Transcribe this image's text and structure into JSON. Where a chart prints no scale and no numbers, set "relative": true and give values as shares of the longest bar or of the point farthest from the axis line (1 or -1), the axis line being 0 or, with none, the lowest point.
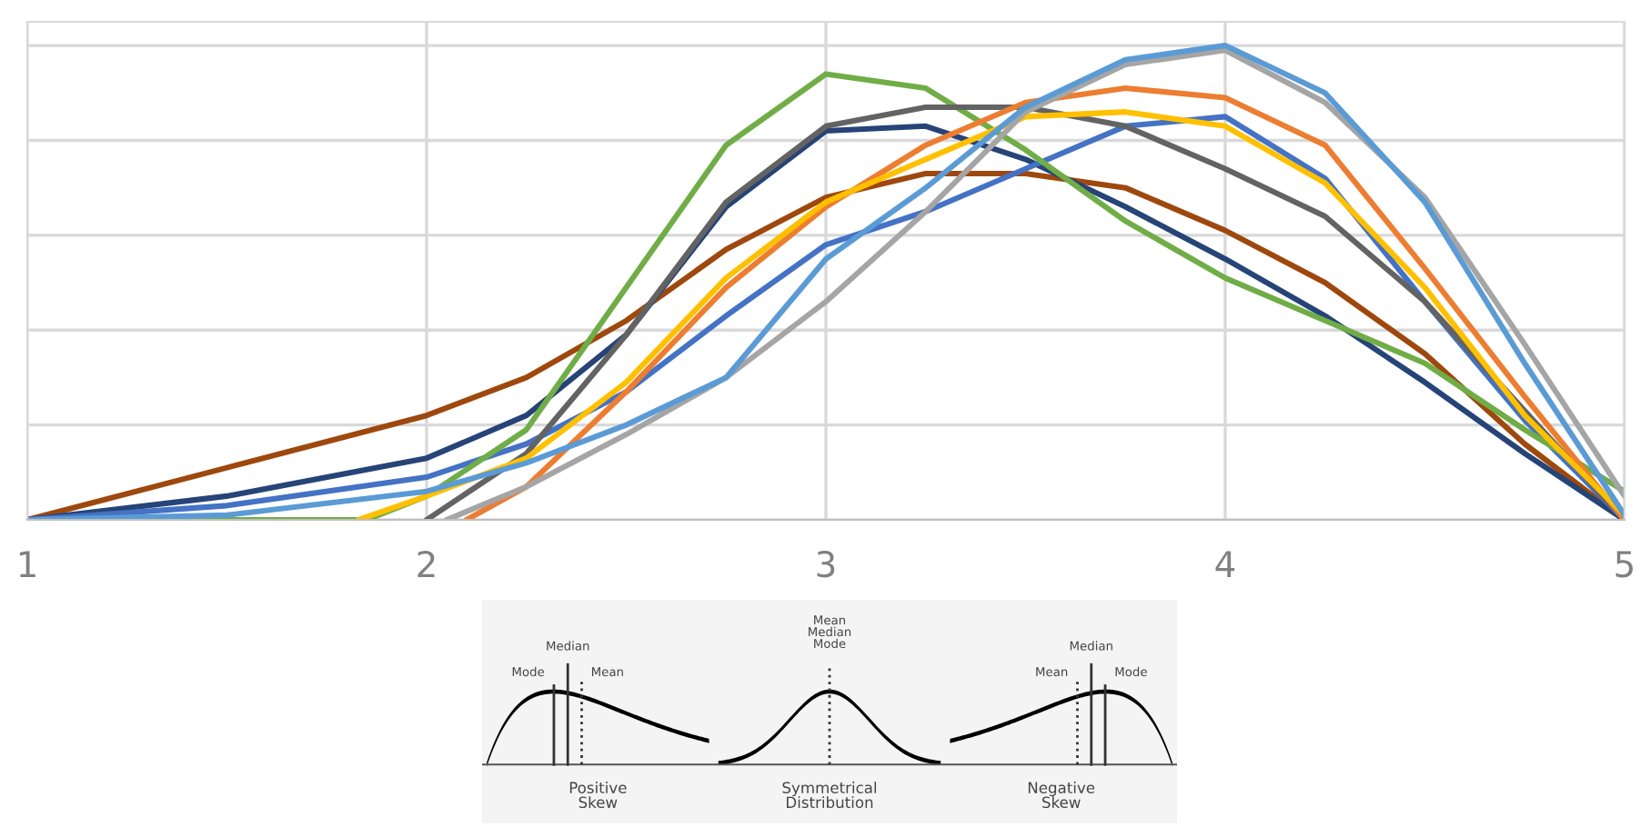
{
  "chart_data": {
    "type": "line",
    "relative": true,
    "grid": true,
    "xlim": [
      1,
      5
    ],
    "xticks": [
      1,
      2,
      3,
      4,
      5
    ],
    "series": [
      {
        "color": "#9e480e",
        "x": [
          1,
          1.5,
          2,
          2.25,
          2.5,
          2.75,
          3,
          3.25,
          3.5,
          3.75,
          4,
          4.25,
          4.5,
          4.75,
          5
        ],
        "values": [
          0,
          0.11,
          0.22,
          0.3,
          0.42,
          0.57,
          0.68,
          0.73,
          0.73,
          0.7,
          0.61,
          0.5,
          0.35,
          0.16,
          0
        ]
      },
      {
        "color": "#264478",
        "x": [
          1,
          1.5,
          2,
          2.25,
          2.5,
          2.75,
          3,
          3.25,
          3.5,
          3.75,
          4,
          4.25,
          4.5,
          4.75,
          5
        ],
        "values": [
          0,
          0.05,
          0.13,
          0.22,
          0.39,
          0.66,
          0.82,
          0.83,
          0.76,
          0.66,
          0.55,
          0.43,
          0.29,
          0.14,
          0
        ]
      },
      {
        "color": "#4472c4",
        "x": [
          1,
          1.5,
          2,
          2.25,
          2.5,
          2.75,
          3,
          3.25,
          3.5,
          3.75,
          4,
          4.25,
          4.5,
          4.75,
          5
        ],
        "values": [
          0,
          0.03,
          0.09,
          0.16,
          0.27,
          0.43,
          0.58,
          0.65,
          0.74,
          0.83,
          0.85,
          0.72,
          0.46,
          0.21,
          0
        ]
      },
      {
        "color": "#70ad47",
        "x": [
          1,
          1.5,
          1.85,
          2,
          2.25,
          2.5,
          2.75,
          3,
          3.25,
          3.5,
          3.75,
          4,
          4.25,
          4.5,
          4.75,
          5
        ],
        "values": [
          0,
          0,
          0,
          0.05,
          0.19,
          0.49,
          0.79,
          0.94,
          0.91,
          0.78,
          0.63,
          0.51,
          0.42,
          0.33,
          0.19,
          0.06
        ]
      },
      {
        "color": "#636363",
        "x": [
          2,
          2.25,
          2.5,
          2.75,
          3,
          3.25,
          3.5,
          3.75,
          4,
          4.25,
          4.5,
          4.75,
          5
        ],
        "values": [
          0,
          0.14,
          0.39,
          0.67,
          0.83,
          0.87,
          0.87,
          0.83,
          0.74,
          0.64,
          0.46,
          0.23,
          0
        ]
      },
      {
        "color": "#ed7d31",
        "x": [
          2.1,
          2.25,
          2.5,
          2.75,
          3,
          3.25,
          3.5,
          3.75,
          4,
          4.25,
          4.5,
          4.75,
          5
        ],
        "values": [
          0,
          0.07,
          0.27,
          0.49,
          0.66,
          0.79,
          0.88,
          0.91,
          0.89,
          0.79,
          0.53,
          0.26,
          0
        ]
      },
      {
        "color": "#ffc000",
        "x": [
          1.83,
          2,
          2.25,
          2.5,
          2.75,
          3,
          3.25,
          3.5,
          3.75,
          4,
          4.25,
          4.5,
          4.75,
          5
        ],
        "values": [
          0,
          0.05,
          0.13,
          0.29,
          0.51,
          0.67,
          0.76,
          0.85,
          0.86,
          0.83,
          0.71,
          0.49,
          0.22,
          0.01
        ]
      },
      {
        "color": "#a5a5a5",
        "x": [
          2.05,
          2.25,
          2.5,
          2.75,
          3,
          3.25,
          3.5,
          3.75,
          4,
          4.25,
          4.5,
          4.75,
          5
        ],
        "values": [
          0,
          0.07,
          0.18,
          0.3,
          0.46,
          0.65,
          0.86,
          0.96,
          0.99,
          0.88,
          0.68,
          0.37,
          0.05
        ]
      },
      {
        "color": "#5b9bd5",
        "x": [
          1,
          1.5,
          2,
          2.25,
          2.5,
          2.75,
          3,
          3.25,
          3.5,
          3.75,
          4,
          4.25,
          4.5,
          4.75,
          5
        ],
        "values": [
          0,
          0.01,
          0.06,
          0.12,
          0.2,
          0.3,
          0.55,
          0.7,
          0.87,
          0.97,
          1,
          0.9,
          0.67,
          0.33,
          0.01
        ]
      }
    ],
    "annotations": [
      "Median",
      "Mode",
      "Mean",
      "Mean\nMedian\nMode",
      "Median",
      "Mean",
      "Mode",
      "Positive\nSkew",
      "Symmetrical\nDistribution",
      "Negative\nSkew"
    ]
  }
}
